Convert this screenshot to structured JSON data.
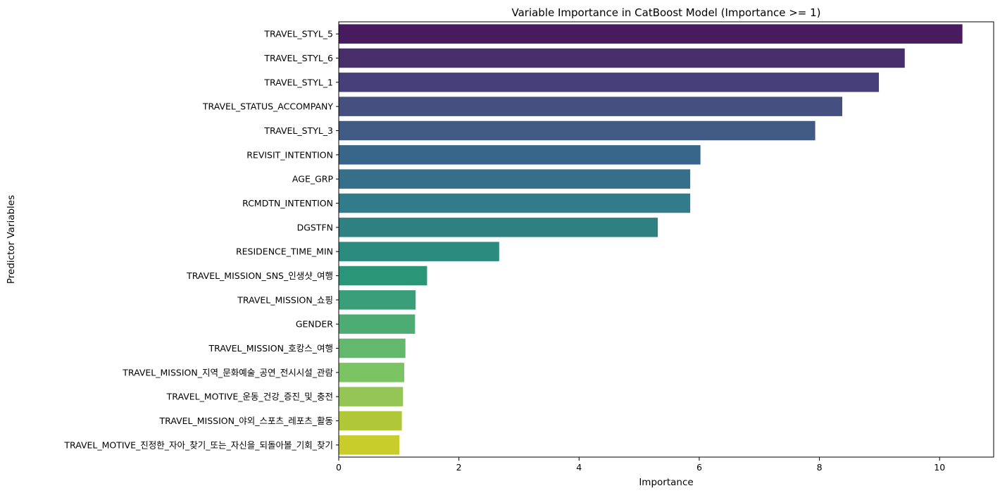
{
  "chart_data": {
    "type": "bar",
    "orientation": "horizontal",
    "title": "Variable Importance in CatBoost Model (Importance >= 1)",
    "xlabel": "Importance",
    "ylabel": "Predictor Variables",
    "xlim": [
      0,
      10.9
    ],
    "xticks": [
      0,
      2,
      4,
      6,
      8,
      10
    ],
    "grid": false,
    "colormap": "viridis",
    "categories": [
      "TRAVEL_STYL_5",
      "TRAVEL_STYL_6",
      "TRAVEL_STYL_1",
      "TRAVEL_STATUS_ACCOMPANY",
      "TRAVEL_STYL_3",
      "REVISIT_INTENTION",
      "AGE_GRP",
      "RCMDTN_INTENTION",
      "DGSTFN",
      "RESIDENCE_TIME_MIN",
      "TRAVEL_MISSION_SNS_인생샷_여행",
      "TRAVEL_MISSION_쇼핑",
      "GENDER",
      "TRAVEL_MISSION_호캉스_여행",
      "TRAVEL_MISSION_지역_문화예술_공연_전시시설_관람",
      "TRAVEL_MOTIVE_운동_건강_증진_및_충전",
      "TRAVEL_MISSION_야외_스포츠_레포츠_활동",
      "TRAVEL_MOTIVE_진정한_자아_찾기_또는_자신을_되돌아볼_기회_찾기"
    ],
    "values": [
      10.38,
      9.42,
      8.99,
      8.38,
      7.93,
      6.02,
      5.85,
      5.85,
      5.31,
      2.67,
      1.47,
      1.28,
      1.27,
      1.11,
      1.09,
      1.07,
      1.05,
      1.01
    ],
    "colors": [
      "#481b5e",
      "#482d6b",
      "#473f79",
      "#455080",
      "#405a84",
      "#38668a",
      "#356f8a",
      "#317b8a",
      "#2f8080",
      "#2a8b7e",
      "#2b9577",
      "#399e79",
      "#4cac72",
      "#63b86d",
      "#7ac463",
      "#95c554",
      "#b0c838",
      "#c8cd2c"
    ]
  }
}
